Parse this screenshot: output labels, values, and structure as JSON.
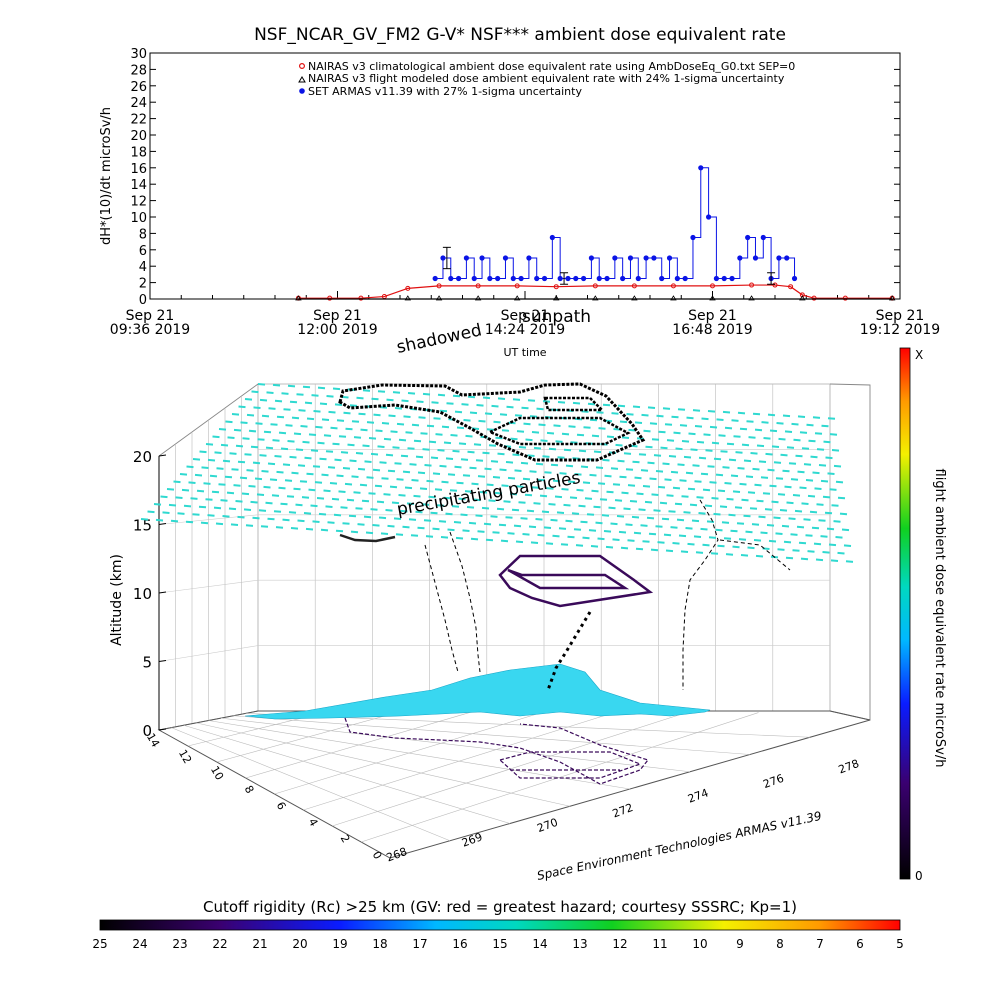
{
  "title": "NSF_NCAR_GV_FM2 G-V* NSF*** ambient dose equivalent rate",
  "chart_data": [
    {
      "type": "line",
      "title": "NSF_NCAR_GV_FM2 G-V* NSF*** ambient dose equivalent rate",
      "ylabel": "dH*(10)/dt microSv/h",
      "xlabel": "UT time",
      "ylim": [
        0,
        30
      ],
      "yticks": [
        "0",
        "2",
        "4",
        "6",
        "8",
        "10",
        "12",
        "14",
        "16",
        "18",
        "20",
        "22",
        "24",
        "26",
        "28",
        "30"
      ],
      "xticks": [
        {
          "date": "Sep 21",
          "time": "09:36 2019"
        },
        {
          "date": "Sep 21",
          "time": "12:00 2019"
        },
        {
          "date": "Sep 21",
          "time": "14:24 2019"
        },
        {
          "date": "Sep 21",
          "time": "16:48 2019"
        },
        {
          "date": "Sep 21",
          "time": "19:12 2019"
        }
      ],
      "xrange_hours": [
        9.6,
        19.2
      ],
      "legend_position": "top-right",
      "series": [
        {
          "name": "NAIRAS v3 climatological ambient dose equivalent rate using AmbDoseEq_G0.txt SEP=0",
          "marker": "circle",
          "color": "#e01010",
          "x": [
            11.5,
            11.9,
            12.3,
            12.6,
            12.9,
            13.3,
            13.8,
            14.3,
            14.8,
            15.3,
            15.8,
            16.3,
            16.8,
            17.3,
            17.6,
            17.8,
            17.95,
            18.1,
            18.5,
            19.1
          ],
          "values": [
            0.1,
            0.1,
            0.1,
            0.3,
            1.3,
            1.6,
            1.6,
            1.6,
            1.5,
            1.6,
            1.6,
            1.6,
            1.6,
            1.7,
            1.7,
            1.5,
            0.5,
            0.1,
            0.1,
            0.1
          ]
        },
        {
          "name": "NAIRAS v3 flight modeled dose ambient equivalent rate with 24% 1-sigma uncertainty",
          "marker": "triangle",
          "color": "#000000",
          "x": [
            11.5,
            12.9,
            13.3,
            13.8,
            14.3,
            14.8,
            15.3,
            15.8,
            16.3,
            16.8,
            17.3,
            17.95,
            19.1
          ],
          "values": [
            0,
            0,
            0,
            0,
            0,
            0,
            0,
            0,
            0,
            0,
            0,
            0,
            0
          ]
        },
        {
          "name": "SET ARMAS v11.39 with 27% 1-sigma uncertainty",
          "marker": "dot",
          "color": "#0a14e6",
          "x": [
            13.25,
            13.35,
            13.45,
            13.55,
            13.65,
            13.75,
            13.85,
            13.95,
            14.05,
            14.15,
            14.25,
            14.35,
            14.45,
            14.55,
            14.65,
            14.75,
            14.85,
            14.95,
            15.05,
            15.15,
            15.25,
            15.35,
            15.45,
            15.55,
            15.65,
            15.75,
            15.85,
            15.95,
            16.05,
            16.15,
            16.25,
            16.35,
            16.45,
            16.55,
            16.65,
            16.75,
            16.85,
            16.95,
            17.05,
            17.15,
            17.25,
            17.35,
            17.45,
            17.55,
            17.65,
            17.75,
            17.85
          ],
          "values": [
            2.5,
            5,
            2.5,
            2.5,
            5,
            2.5,
            5,
            2.5,
            2.5,
            5,
            2.5,
            2.5,
            5,
            2.5,
            2.5,
            7.5,
            2.5,
            2.5,
            2.5,
            2.5,
            5,
            2.5,
            2.5,
            5,
            2.5,
            5,
            2.5,
            5,
            5,
            2.5,
            5,
            2.5,
            2.5,
            7.5,
            16,
            10,
            2.5,
            2.5,
            2.5,
            5,
            7.5,
            5,
            7.5,
            2.5,
            5,
            5,
            2.5
          ]
        }
      ]
    },
    {
      "type": "scatter",
      "subtype": "3d-trajectory",
      "zlabel": "Altitude (km)",
      "zticks": [
        "0",
        "5",
        "10",
        "15",
        "20"
      ],
      "x_ticks": [
        "268",
        "269",
        "270",
        "272",
        "274",
        "276",
        "278"
      ],
      "y_ticks": [
        "0",
        "2",
        "4",
        "6",
        "8",
        "10",
        "12",
        "14"
      ],
      "annotations": [
        "shadowed",
        "sunpath",
        "precipitating particles"
      ],
      "credit": "Space Environment Technologies ARMAS v11.39",
      "colorbar": {
        "label": "flight ambient dose equivalent rate microSv/h",
        "max_label": "X",
        "min_label": "0"
      }
    },
    {
      "type": "heatmap",
      "subtype": "colorbar",
      "title": "Cutoff rigidity (Rc) >25 km (GV: red = greatest hazard; courtesy SSSRC; Kp=1)",
      "ticks": [
        "25",
        "24",
        "23",
        "22",
        "21",
        "20",
        "19",
        "18",
        "17",
        "16",
        "15",
        "14",
        "13",
        "12",
        "11",
        "10",
        "9",
        "8",
        "7",
        "6",
        "5"
      ]
    }
  ],
  "colors": {
    "nairas_clim": "#e01010",
    "armas": "#0a14e6",
    "grid_lattice": "#2fd9d0",
    "surface_fill": "#39d7f0",
    "trajectory_dark": "#3a0a5a"
  }
}
